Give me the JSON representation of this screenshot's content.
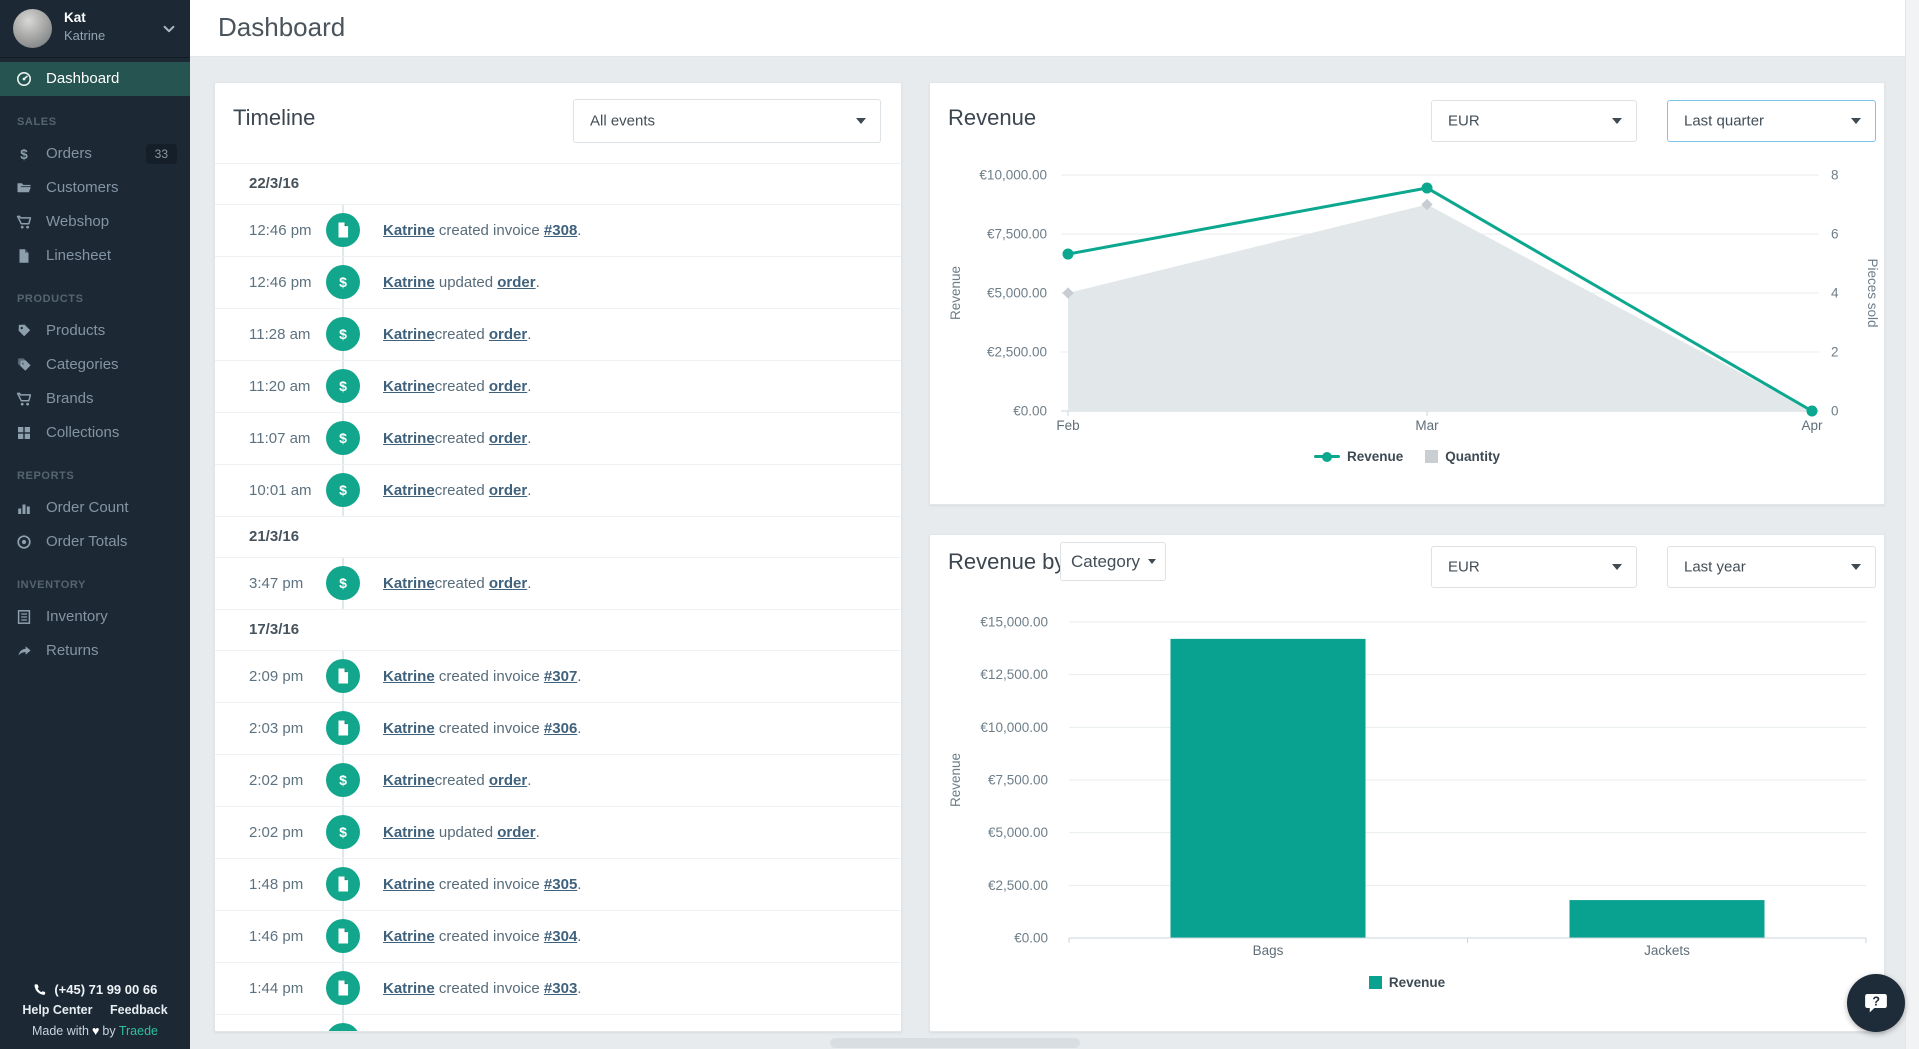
{
  "header": {
    "title": "Dashboard"
  },
  "colors": {
    "accent_teal": "#0ba78e",
    "bar_teal": "#09a291",
    "quantity_gray": "#e2e7ea",
    "sidebar_bg": "#1c2834",
    "sidebar_active": "#265450",
    "link_blue": "#3f617c",
    "brand_teal": "#2fbfa0"
  },
  "sidebar": {
    "user": {
      "name": "Kat",
      "subtitle": "Katrine"
    },
    "sections": [
      {
        "label": "",
        "items": [
          {
            "label": "Dashboard",
            "icon": "gauge",
            "active": true
          }
        ]
      },
      {
        "label": "SALES",
        "items": [
          {
            "label": "Orders",
            "icon": "dollar",
            "badge": "33"
          },
          {
            "label": "Customers",
            "icon": "folder"
          },
          {
            "label": "Webshop",
            "icon": "cart"
          },
          {
            "label": "Linesheet",
            "icon": "doc"
          }
        ]
      },
      {
        "label": "PRODUCTS",
        "items": [
          {
            "label": "Products",
            "icon": "tag"
          },
          {
            "label": "Categories",
            "icon": "tags"
          },
          {
            "label": "Brands",
            "icon": "cart"
          },
          {
            "label": "Collections",
            "icon": "grid"
          }
        ]
      },
      {
        "label": "REPORTS",
        "items": [
          {
            "label": "Order Count",
            "icon": "bar-chart"
          },
          {
            "label": "Order Totals",
            "icon": "target"
          }
        ]
      },
      {
        "label": "INVENTORY",
        "items": [
          {
            "label": "Inventory",
            "icon": "list"
          },
          {
            "label": "Returns",
            "icon": "share"
          }
        ]
      }
    ],
    "footer": {
      "phone": "(+45) 71 99 00 66",
      "links": [
        "Help Center",
        "Feedback"
      ],
      "made_with": "Made with",
      "by": "by",
      "brand": "Traede"
    }
  },
  "timeline": {
    "title": "Timeline",
    "filter": "All events",
    "groups": [
      {
        "date": "22/3/16",
        "events": [
          {
            "time": "12:46 pm",
            "icon": "invoice",
            "actor": "Katrine",
            "action": " created invoice ",
            "target": "#308",
            "suffix": "."
          },
          {
            "time": "12:46 pm",
            "icon": "order",
            "actor": "Katrine",
            "action": " updated ",
            "target": "order",
            "suffix": "."
          },
          {
            "time": "11:28 am",
            "icon": "order",
            "actor": "Katrine",
            "action": "created ",
            "target": "order",
            "suffix": "."
          },
          {
            "time": "11:20 am",
            "icon": "order",
            "actor": "Katrine",
            "action": "created ",
            "target": "order",
            "suffix": "."
          },
          {
            "time": "11:07 am",
            "icon": "order",
            "actor": "Katrine",
            "action": "created ",
            "target": "order",
            "suffix": "."
          },
          {
            "time": "10:01 am",
            "icon": "order",
            "actor": "Katrine",
            "action": "created ",
            "target": "order",
            "suffix": "."
          }
        ]
      },
      {
        "date": "21/3/16",
        "events": [
          {
            "time": "3:47 pm",
            "icon": "order",
            "actor": "Katrine",
            "action": "created ",
            "target": "order",
            "suffix": "."
          }
        ]
      },
      {
        "date": "17/3/16",
        "events": [
          {
            "time": "2:09 pm",
            "icon": "invoice",
            "actor": "Katrine",
            "action": " created invoice ",
            "target": "#307",
            "suffix": "."
          },
          {
            "time": "2:03 pm",
            "icon": "invoice",
            "actor": "Katrine",
            "action": " created invoice ",
            "target": "#306",
            "suffix": "."
          },
          {
            "time": "2:02 pm",
            "icon": "order",
            "actor": "Katrine",
            "action": "created ",
            "target": "order",
            "suffix": "."
          },
          {
            "time": "2:02 pm",
            "icon": "order",
            "actor": "Katrine",
            "action": " updated ",
            "target": "order",
            "suffix": "."
          },
          {
            "time": "1:48 pm",
            "icon": "invoice",
            "actor": "Katrine",
            "action": " created invoice ",
            "target": "#305",
            "suffix": "."
          },
          {
            "time": "1:46 pm",
            "icon": "invoice",
            "actor": "Katrine",
            "action": " created invoice ",
            "target": "#304",
            "suffix": "."
          },
          {
            "time": "1:44 pm",
            "icon": "invoice",
            "actor": "Katrine",
            "action": " created invoice ",
            "target": "#303",
            "suffix": "."
          },
          {
            "time": "",
            "icon": "order",
            "actor": "",
            "action": "",
            "target": "",
            "suffix": "",
            "partial": true
          }
        ]
      }
    ]
  },
  "revenue_panel": {
    "title": "Revenue",
    "currency": "EUR",
    "range": "Last quarter"
  },
  "revenue_by_panel": {
    "title": "Revenue by",
    "dimension": "Category",
    "currency": "EUR",
    "range": "Last year"
  },
  "chart_data": [
    {
      "type": "line",
      "title": "Revenue",
      "x": [
        "Feb",
        "Mar",
        "Apr"
      ],
      "series": [
        {
          "name": "Revenue",
          "kind": "line",
          "axis": "left",
          "color": "#0ba78e",
          "values": [
            6650,
            9450,
            0
          ]
        },
        {
          "name": "Quantity",
          "kind": "area",
          "axis": "right",
          "color": "#e2e7ea",
          "marker_color": "#c7cdd2",
          "values": [
            4,
            7,
            0
          ]
        }
      ],
      "left_axis": {
        "label": "Revenue",
        "min": 0,
        "max": 10000,
        "tick_values": [
          0,
          2500,
          5000,
          7500,
          10000
        ],
        "ticks": [
          "€0.00",
          "€2,500.00",
          "€5,000.00",
          "€7,500.00",
          "€10,000.00"
        ]
      },
      "right_axis": {
        "label": "Pieces sold",
        "min": 0,
        "max": 8,
        "tick_values": [
          0,
          2,
          4,
          6,
          8
        ],
        "ticks": [
          "0",
          "2",
          "4",
          "6",
          "8"
        ]
      },
      "legend_position": "bottom",
      "grid": true
    },
    {
      "type": "bar",
      "title": "Revenue by Category",
      "categories": [
        "Bags",
        "Jackets"
      ],
      "series": [
        {
          "name": "Revenue",
          "color": "#09a291",
          "values": [
            14200,
            1800
          ]
        }
      ],
      "left_axis": {
        "label": "Revenue",
        "min": 0,
        "max": 15000,
        "tick_values": [
          0,
          2500,
          5000,
          7500,
          10000,
          12500,
          15000
        ],
        "ticks": [
          "€0.00",
          "€2,500.00",
          "€5,000.00",
          "€7,500.00",
          "€10,000.00",
          "€12,500.00",
          "€15,000.00"
        ]
      },
      "legend_position": "bottom",
      "grid": true
    }
  ],
  "help_button": {
    "icon": "chat",
    "glyph": "?"
  }
}
